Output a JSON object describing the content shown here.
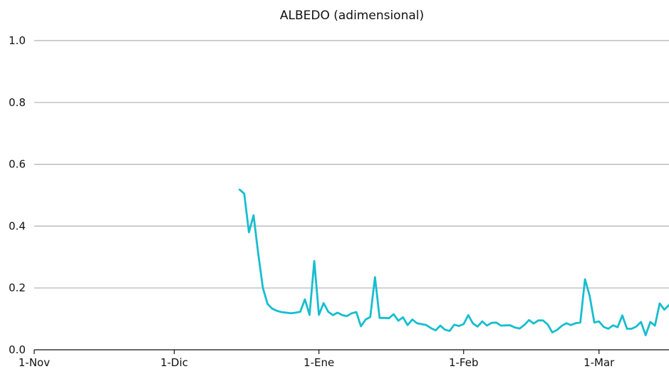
{
  "chart_data": {
    "type": "line",
    "title": "ALBEDO (adimensional)",
    "xlabel": "",
    "ylabel": "",
    "ylim": [
      0,
      1.0
    ],
    "yticks": [
      "0.0",
      "0.2",
      "0.4",
      "0.6",
      "0.8",
      "1.0"
    ],
    "xlim": [
      "2023-11-01",
      "2024-03-16"
    ],
    "xticks": [
      {
        "date": "2023-11-01",
        "label": "1-Nov"
      },
      {
        "date": "2023-12-01",
        "label": "1-Dic"
      },
      {
        "date": "2024-01-01",
        "label": "1-Ene"
      },
      {
        "date": "2024-02-01",
        "label": "1-Feb"
      },
      {
        "date": "2024-03-01",
        "label": "1-Mar"
      }
    ],
    "grid": "horizontal",
    "legend": "none",
    "series": [
      {
        "color": "#17becf",
        "x": [
          "2023-12-15",
          "2023-12-16",
          "2023-12-17",
          "2023-12-18",
          "2023-12-19",
          "2023-12-20",
          "2023-12-21",
          "2023-12-22",
          "2023-12-23",
          "2023-12-24",
          "2023-12-25",
          "2023-12-26",
          "2023-12-27",
          "2023-12-28",
          "2023-12-29",
          "2023-12-30",
          "2023-12-31",
          "2024-01-01",
          "2024-01-02",
          "2024-01-03",
          "2024-01-04",
          "2024-01-05",
          "2024-01-06",
          "2024-01-07",
          "2024-01-08",
          "2024-01-09",
          "2024-01-10",
          "2024-01-11",
          "2024-01-12",
          "2024-01-13",
          "2024-01-14",
          "2024-01-15",
          "2024-01-16",
          "2024-01-17",
          "2024-01-18",
          "2024-01-19",
          "2024-01-20",
          "2024-01-21",
          "2024-01-22",
          "2024-01-23",
          "2024-01-24",
          "2024-01-25",
          "2024-01-26",
          "2024-01-27",
          "2024-01-28",
          "2024-01-29",
          "2024-01-30",
          "2024-01-31",
          "2024-02-01",
          "2024-02-02",
          "2024-02-03",
          "2024-02-04",
          "2024-02-05",
          "2024-02-06",
          "2024-02-07",
          "2024-02-08",
          "2024-02-09",
          "2024-02-10",
          "2024-02-11",
          "2024-02-12",
          "2024-02-13",
          "2024-02-14",
          "2024-02-15",
          "2024-02-16",
          "2024-02-17",
          "2024-02-18",
          "2024-02-19",
          "2024-02-20",
          "2024-02-21",
          "2024-02-22",
          "2024-02-23",
          "2024-02-24",
          "2024-02-25",
          "2024-02-26",
          "2024-02-27",
          "2024-02-28",
          "2024-02-29",
          "2024-03-01",
          "2024-03-02",
          "2024-03-03",
          "2024-03-04",
          "2024-03-05",
          "2024-03-06",
          "2024-03-07",
          "2024-03-08",
          "2024-03-09",
          "2024-03-10",
          "2024-03-11",
          "2024-03-12",
          "2024-03-13",
          "2024-03-14",
          "2024-03-15",
          "2024-03-16"
        ],
        "values": [
          0.518,
          0.505,
          0.38,
          0.435,
          0.31,
          0.2,
          0.148,
          0.133,
          0.126,
          0.122,
          0.12,
          0.118,
          0.12,
          0.123,
          0.163,
          0.113,
          0.287,
          0.113,
          0.151,
          0.123,
          0.112,
          0.12,
          0.112,
          0.109,
          0.118,
          0.122,
          0.076,
          0.098,
          0.106,
          0.235,
          0.103,
          0.103,
          0.102,
          0.115,
          0.094,
          0.105,
          0.08,
          0.098,
          0.086,
          0.083,
          0.08,
          0.07,
          0.063,
          0.078,
          0.065,
          0.061,
          0.081,
          0.077,
          0.083,
          0.112,
          0.085,
          0.075,
          0.092,
          0.078,
          0.087,
          0.088,
          0.078,
          0.079,
          0.079,
          0.072,
          0.069,
          0.08,
          0.096,
          0.085,
          0.095,
          0.095,
          0.082,
          0.056,
          0.064,
          0.077,
          0.086,
          0.08,
          0.086,
          0.088,
          0.228,
          0.175,
          0.088,
          0.092,
          0.074,
          0.068,
          0.079,
          0.073,
          0.111,
          0.068,
          0.068,
          0.075,
          0.09,
          0.047,
          0.09,
          0.078,
          0.15,
          0.13,
          0.145
        ]
      }
    ]
  }
}
